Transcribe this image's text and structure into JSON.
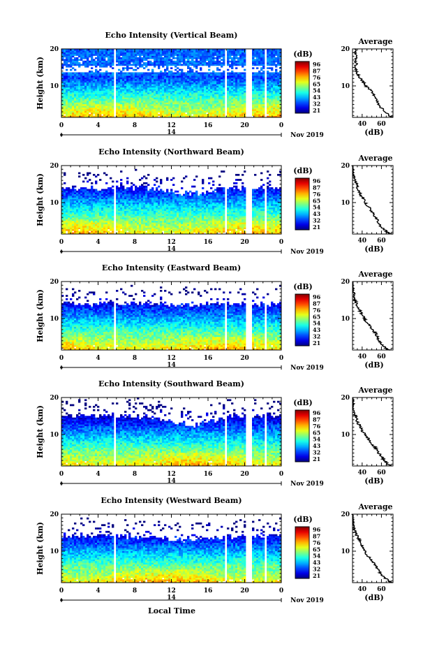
{
  "figure": {
    "x_axis_label": "Local Time",
    "date_label": "Nov 2019",
    "day_label": "14",
    "y_axis_label": "Height (km)",
    "average_title": "Average",
    "average_x_label": "(dB)",
    "colorbar_unit": "(dB)",
    "colorbar_ticks": [
      "96",
      "87",
      "76",
      "65",
      "54",
      "43",
      "32",
      "21"
    ],
    "x_ticks": [
      "0",
      "4",
      "8",
      "12",
      "16",
      "20",
      "0"
    ],
    "y_ticks": [
      "20",
      "10"
    ],
    "average_x_ticks": [
      "40",
      "60"
    ]
  },
  "chart_data": [
    {
      "type": "heatmap",
      "title": "Echo Intensity (Vertical Beam)",
      "colorbar_ticks": [
        "96",
        "87",
        "76",
        "65",
        "54",
        "43",
        "32",
        "21"
      ],
      "x_ticks": [
        "0",
        "4",
        "8",
        "12",
        "16",
        "20",
        "0"
      ],
      "top_km": 20,
      "top_dip": 0,
      "y_ticks": [
        "20",
        "10"
      ],
      "average_y_ticks": [
        "20",
        "10"
      ],
      "average": {
        "x_label": "(dB)",
        "x_ticks": [
          "40",
          "60"
        ],
        "height_km": [
          1.5,
          2,
          3,
          4,
          5,
          6,
          7,
          8,
          9,
          10,
          11,
          12,
          13,
          14,
          15,
          16,
          17,
          18,
          19,
          20
        ],
        "db": [
          72,
          68,
          64,
          60,
          57,
          55,
          53,
          51,
          48,
          44,
          41,
          38,
          36,
          34,
          32,
          34,
          33,
          35,
          33,
          32
        ]
      }
    },
    {
      "type": "heatmap",
      "title": "Echo Intensity (Northward Beam)",
      "colorbar_ticks": [
        "96",
        "87",
        "76",
        "65",
        "54",
        "43",
        "32",
        "21"
      ],
      "x_ticks": [
        "0",
        "4",
        "8",
        "12",
        "16",
        "20",
        "0"
      ],
      "top_km": 14,
      "top_dip": 1.5,
      "y_ticks": [
        "20",
        "10"
      ],
      "average_y_ticks": [
        "20",
        "10"
      ],
      "average": {
        "x_label": "(dB)",
        "x_ticks": [
          "40",
          "60"
        ],
        "height_km": [
          1.5,
          2,
          3,
          4,
          5,
          6,
          7,
          8,
          9,
          10,
          11,
          12,
          13,
          14,
          15,
          16,
          17,
          18,
          19,
          20
        ],
        "db": [
          70,
          66,
          62,
          58,
          56,
          54,
          52,
          49,
          46,
          43,
          41,
          39,
          37,
          35,
          34,
          32,
          31,
          30,
          30,
          29
        ]
      }
    },
    {
      "type": "heatmap",
      "title": "Echo Intensity (Eastward Beam)",
      "colorbar_ticks": [
        "96",
        "87",
        "76",
        "65",
        "54",
        "43",
        "32",
        "21"
      ],
      "x_ticks": [
        "0",
        "4",
        "8",
        "12",
        "16",
        "20",
        "0"
      ],
      "top_km": 14,
      "top_dip": 0.5,
      "y_ticks": [
        "20",
        "10"
      ],
      "average_y_ticks": [
        "20",
        "10"
      ],
      "average": {
        "x_label": "(dB)",
        "x_ticks": [
          "40",
          "60"
        ],
        "height_km": [
          1.5,
          2,
          3,
          4,
          5,
          6,
          7,
          8,
          9,
          10,
          11,
          12,
          13,
          14,
          15,
          16,
          17,
          18,
          19,
          20
        ],
        "db": [
          68,
          64,
          61,
          58,
          56,
          54,
          51,
          48,
          45,
          42,
          40,
          38,
          36,
          34,
          33,
          32,
          31,
          30,
          31,
          30
        ]
      }
    },
    {
      "type": "heatmap",
      "title": "Echo Intensity (Southward Beam)",
      "colorbar_ticks": [
        "96",
        "87",
        "76",
        "65",
        "54",
        "43",
        "32",
        "21"
      ],
      "x_ticks": [
        "0",
        "4",
        "8",
        "12",
        "16",
        "20",
        "0"
      ],
      "top_km": 15,
      "top_dip": 2.5,
      "y_ticks": [
        "20",
        "10"
      ],
      "average_y_ticks": [
        "20",
        "10"
      ],
      "average": {
        "x_label": "(dB)",
        "x_ticks": [
          "40",
          "60"
        ],
        "height_km": [
          1.5,
          2,
          3,
          4,
          5,
          6,
          7,
          8,
          9,
          10,
          11,
          12,
          13,
          14,
          15,
          16,
          17,
          18,
          19,
          20
        ],
        "db": [
          70,
          66,
          63,
          60,
          57,
          55,
          52,
          49,
          46,
          43,
          40,
          38,
          36,
          34,
          33,
          31,
          30,
          31,
          30,
          30
        ]
      }
    },
    {
      "type": "heatmap",
      "title": "Echo Intensity (Westward Beam)",
      "colorbar_ticks": [
        "96",
        "87",
        "76",
        "65",
        "54",
        "43",
        "32",
        "21"
      ],
      "x_ticks": [
        "0",
        "4",
        "8",
        "12",
        "16",
        "20",
        "0"
      ],
      "top_km": 14,
      "top_dip": 1,
      "y_ticks": [
        "20",
        "10"
      ],
      "average_y_ticks": [
        "20",
        "10"
      ],
      "average": {
        "x_label": "(dB)",
        "x_ticks": [
          "40",
          "60"
        ],
        "height_km": [
          1.5,
          2,
          3,
          4,
          5,
          6,
          7,
          8,
          9,
          10,
          11,
          12,
          13,
          14,
          15,
          16,
          17,
          18,
          19,
          20
        ],
        "db": [
          72,
          67,
          63,
          59,
          56,
          54,
          51,
          48,
          45,
          43,
          41,
          39,
          37,
          35,
          33,
          32,
          31,
          30,
          30,
          29
        ]
      }
    }
  ]
}
